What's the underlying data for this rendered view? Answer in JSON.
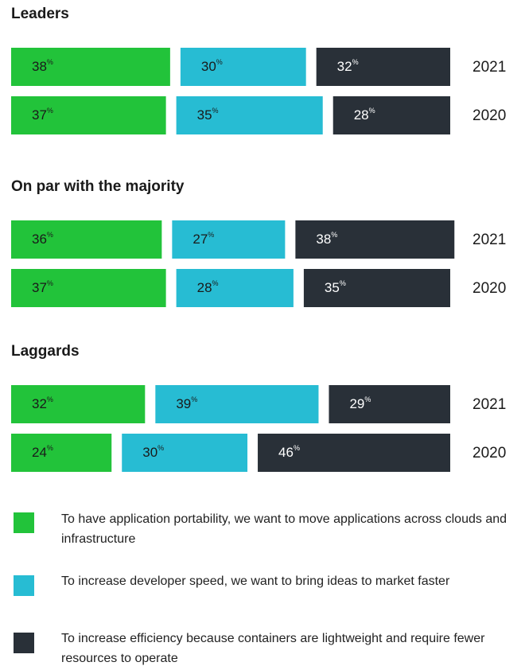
{
  "chart_data": {
    "type": "bar",
    "stacked": true,
    "unit": "%",
    "groups": [
      {
        "title": "Leaders",
        "categories": [
          "2021",
          "2020"
        ]
      },
      {
        "title": "On par with the majority",
        "categories": [
          "2021",
          "2020"
        ]
      },
      {
        "title": "Laggards",
        "categories": [
          "2021",
          "2020"
        ]
      }
    ],
    "series": [
      {
        "name": "To have application portability, we want to move applications across clouds and infrastructure",
        "color": "#22c33a",
        "values": [
          38,
          37,
          36,
          37,
          32,
          24
        ]
      },
      {
        "name": "To increase developer speed, we want to bring ideas to market faster",
        "color": "#27bcd3",
        "values": [
          30,
          35,
          27,
          28,
          39,
          30
        ]
      },
      {
        "name": "To increase efficiency because containers are lightweight and require fewer resources to operate",
        "color": "#293038",
        "values": [
          32,
          28,
          38,
          35,
          29,
          46
        ]
      }
    ]
  }
}
